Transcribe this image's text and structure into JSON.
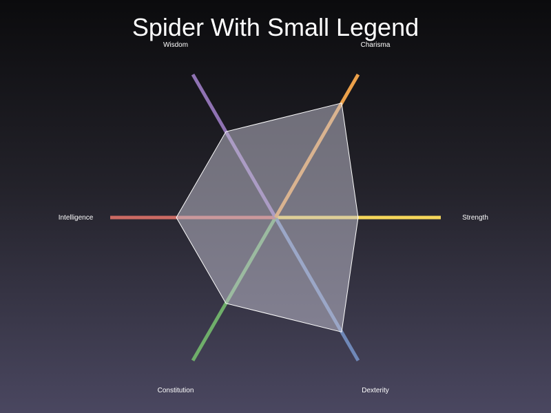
{
  "chart_data": {
    "type": "radar",
    "title": "Spider With Small Legend",
    "axes": [
      {
        "label": "Strength",
        "color": "#f5d65a"
      },
      {
        "label": "Dexterity",
        "color": "#6f88b8"
      },
      {
        "label": "Constitution",
        "color": "#6fae6a"
      },
      {
        "label": "Intelligence",
        "color": "#cc6a63"
      },
      {
        "label": "Wisdom",
        "color": "#8f72b3"
      },
      {
        "label": "Charisma",
        "color": "#eba04a"
      }
    ],
    "series": [
      {
        "values": [
          0.5,
          0.8,
          0.6,
          0.6,
          0.6,
          0.8
        ]
      }
    ],
    "range": [
      0,
      1
    ],
    "fill_color": "#c8c6d6",
    "grid": false,
    "legend": "none"
  }
}
